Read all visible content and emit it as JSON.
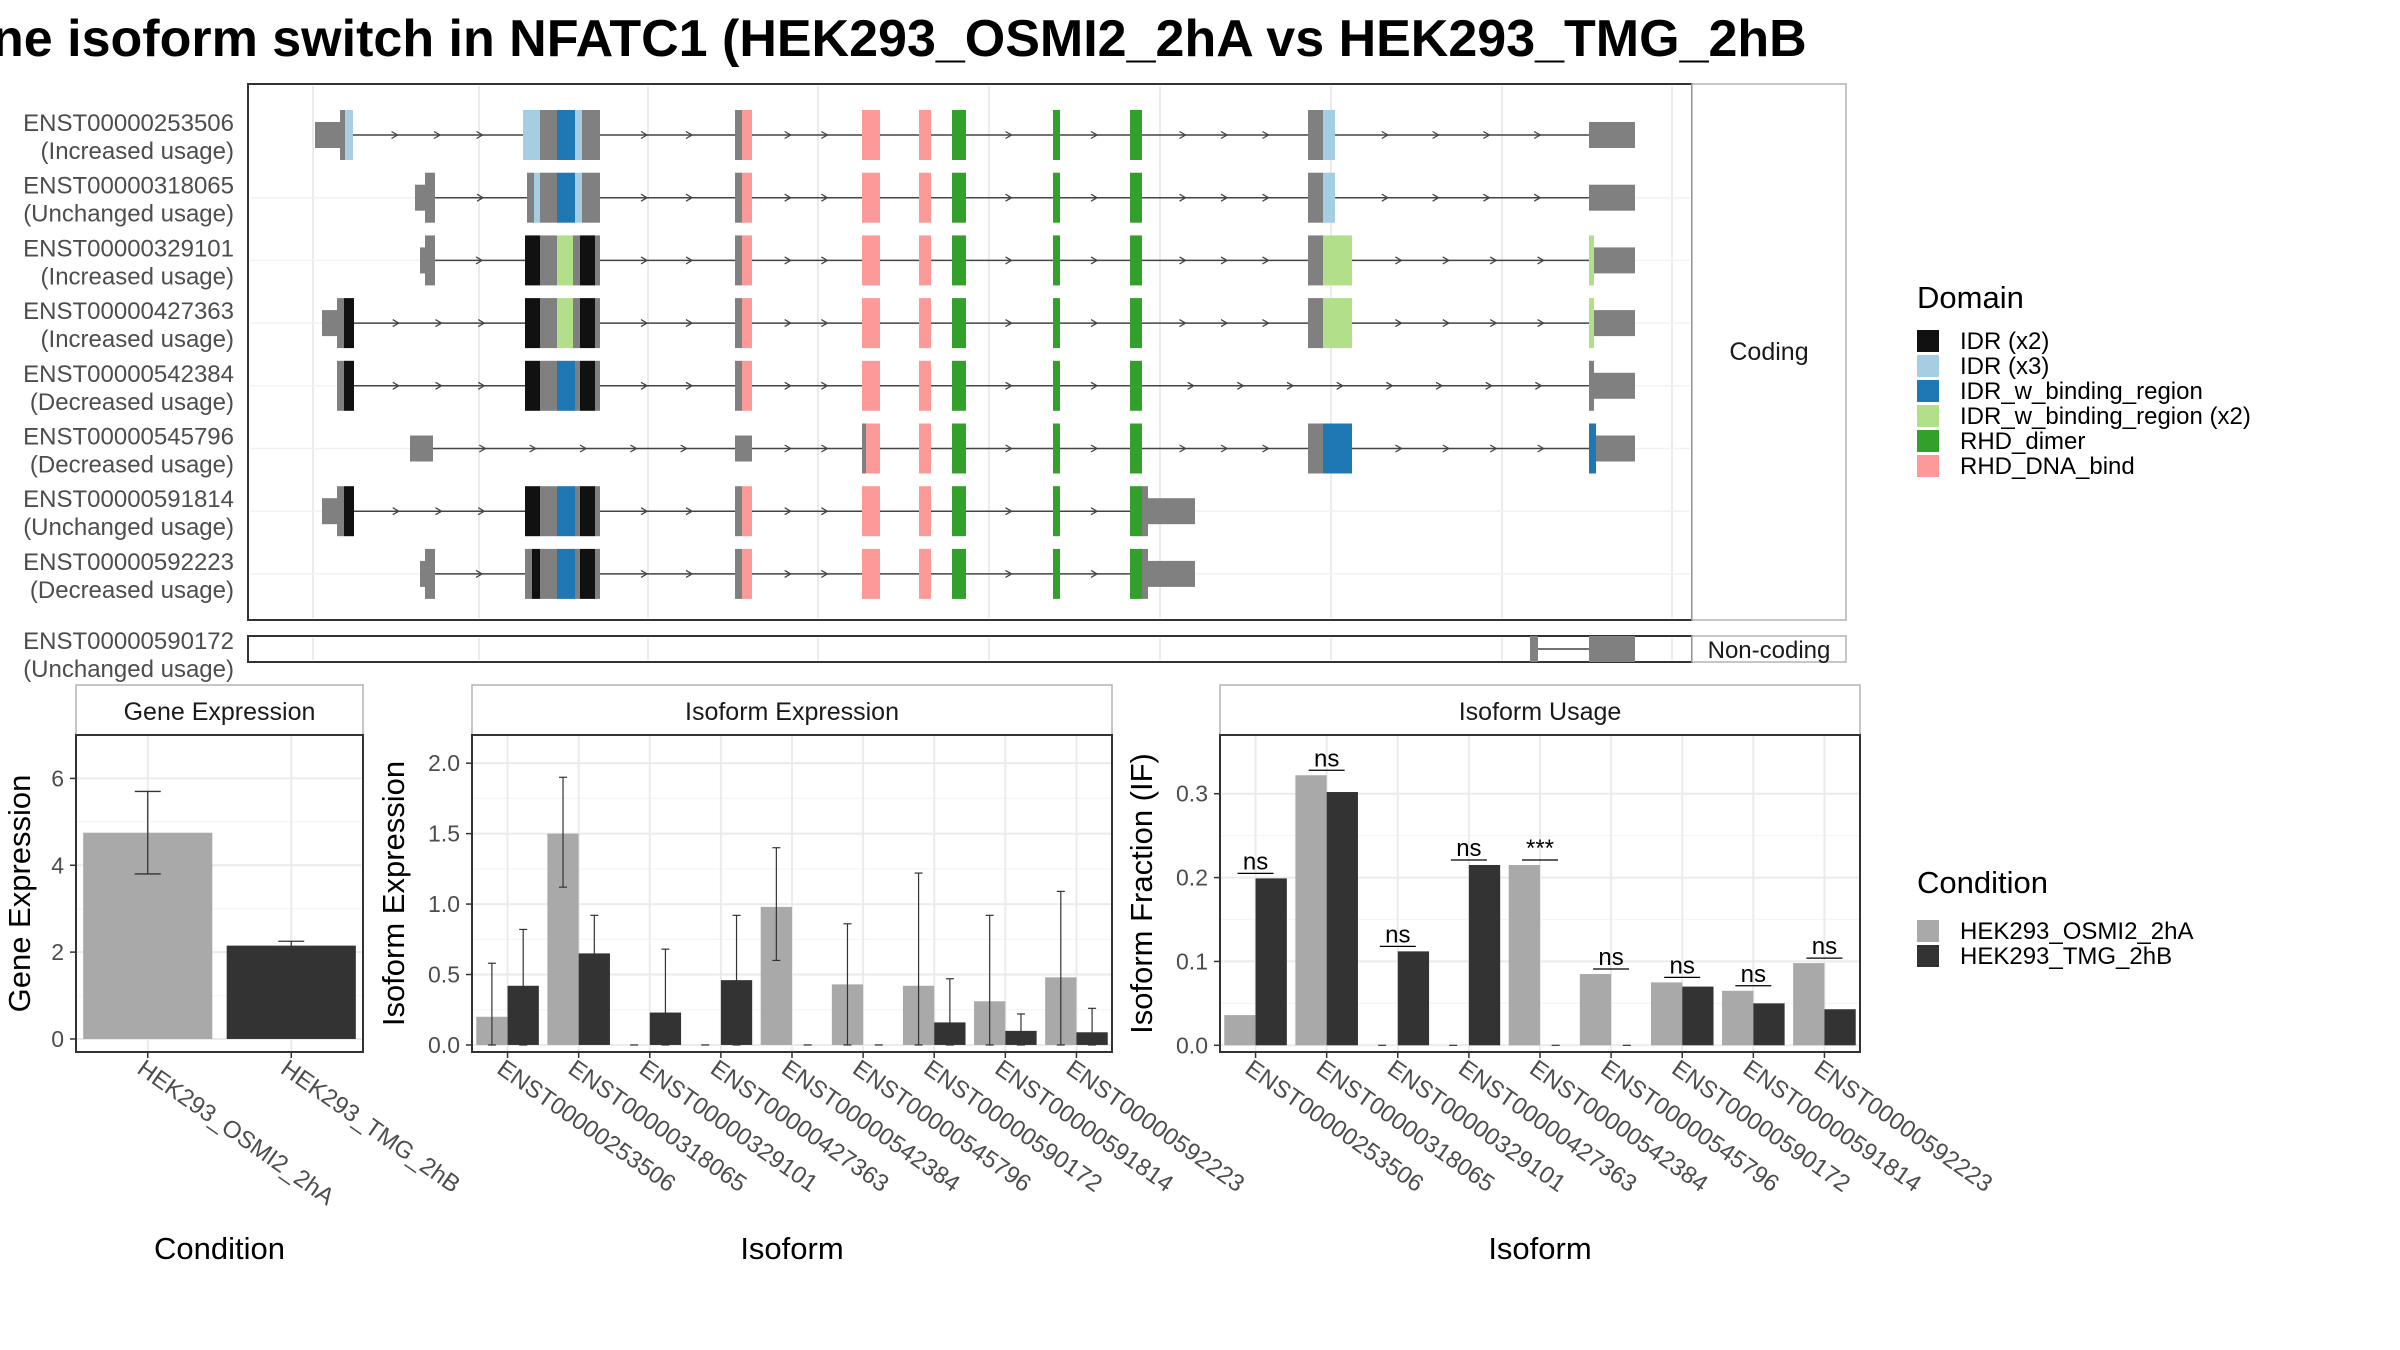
{
  "title": "ne isoform switch in NFATC1 (HEK293_OSMI2_2hA vs HEK293_TMG_2hB",
  "structure_panel": {
    "coding_label": "Coding",
    "noncoding_label": "Non-coding",
    "transcripts": [
      {
        "id": "ENST00000253506",
        "usage": "(Increased usage)",
        "group": "coding"
      },
      {
        "id": "ENST00000318065",
        "usage": "(Unchanged usage)",
        "group": "coding"
      },
      {
        "id": "ENST00000329101",
        "usage": "(Increased usage)",
        "group": "coding"
      },
      {
        "id": "ENST00000427363",
        "usage": "(Increased usage)",
        "group": "coding"
      },
      {
        "id": "ENST00000542384",
        "usage": "(Decreased usage)",
        "group": "coding"
      },
      {
        "id": "ENST00000545796",
        "usage": "(Decreased usage)",
        "group": "coding"
      },
      {
        "id": "ENST00000591814",
        "usage": "(Unchanged usage)",
        "group": "coding"
      },
      {
        "id": "ENST00000592223",
        "usage": "(Decreased usage)",
        "group": "coding"
      },
      {
        "id": "ENST00000590172",
        "usage": "(Unchanged usage)",
        "group": "noncoding"
      }
    ]
  },
  "domain_legend": {
    "title": "Domain",
    "items": [
      {
        "label": "IDR (x2)",
        "color": "#111111"
      },
      {
        "label": "IDR (x3)",
        "color": "#a6cee3"
      },
      {
        "label": "IDR_w_binding_region",
        "color": "#1f78b4"
      },
      {
        "label": "IDR_w_binding_region (x2)",
        "color": "#b2df8a"
      },
      {
        "label": "RHD_dimer",
        "color": "#33a02c"
      },
      {
        "label": "RHD_DNA_bind",
        "color": "#fb9a99"
      }
    ]
  },
  "condition_legend": {
    "title": "Condition",
    "items": [
      {
        "label": "HEK293_OSMI2_2hA",
        "color": "#a9a9a9"
      },
      {
        "label": "HEK293_TMG_2hB",
        "color": "#333333"
      }
    ]
  },
  "chart_data": [
    {
      "type": "bar",
      "title": "Gene Expression",
      "xlabel": "Condition",
      "ylabel": "Gene Expression",
      "categories": [
        "HEK293_OSMI2_2hA",
        "HEK293_TMG_2hB"
      ],
      "values": [
        4.75,
        2.15
      ],
      "error_low": [
        3.8,
        2.05
      ],
      "error_high": [
        5.7,
        2.25
      ],
      "ylim": [
        -0.3,
        7.0
      ],
      "yticks": [
        0,
        2,
        4,
        6
      ]
    },
    {
      "type": "bar",
      "title": "Isoform Expression",
      "xlabel": "Isoform",
      "ylabel": "Isoform Expression",
      "categories": [
        "ENST00000253506",
        "ENST00000318065",
        "ENST00000329101",
        "ENST00000427363",
        "ENST00000542384",
        "ENST00000545796",
        "ENST00000590172",
        "ENST00000591814",
        "ENST00000592223"
      ],
      "series": [
        {
          "name": "HEK293_OSMI2_2hA",
          "values": [
            0.2,
            1.5,
            0.0,
            0.0,
            0.98,
            0.43,
            0.42,
            0.31,
            0.48
          ],
          "error_low": [
            0.0,
            1.12,
            0.0,
            0.0,
            0.6,
            0.0,
            0.0,
            0.0,
            0.0
          ],
          "error_high": [
            0.58,
            1.9,
            0.0,
            0.0,
            1.4,
            0.86,
            1.22,
            0.92,
            1.09
          ]
        },
        {
          "name": "HEK293_TMG_2hB",
          "values": [
            0.42,
            0.65,
            0.23,
            0.46,
            0.0,
            0.0,
            0.16,
            0.1,
            0.09
          ],
          "error_low": [
            0.0,
            0.38,
            0.0,
            0.0,
            0.0,
            0.0,
            0.0,
            0.0,
            0.0
          ],
          "error_high": [
            0.82,
            0.92,
            0.68,
            0.92,
            0.0,
            0.0,
            0.47,
            0.22,
            0.26
          ]
        }
      ],
      "ylim": [
        -0.05,
        2.2
      ],
      "yticks": [
        0.0,
        0.5,
        1.0,
        1.5,
        2.0
      ]
    },
    {
      "type": "bar",
      "title": "Isoform Usage",
      "xlabel": "Isoform",
      "ylabel": "Isoform Fraction (IF)",
      "categories": [
        "ENST00000253506",
        "ENST00000318065",
        "ENST00000329101",
        "ENST00000427363",
        "ENST00000542384",
        "ENST00000545796",
        "ENST00000590172",
        "ENST00000591814",
        "ENST00000592223"
      ],
      "series": [
        {
          "name": "HEK293_OSMI2_2hA",
          "values": [
            0.036,
            0.322,
            0.0,
            0.0,
            0.215,
            0.085,
            0.075,
            0.065,
            0.098
          ]
        },
        {
          "name": "HEK293_TMG_2hB",
          "values": [
            0.199,
            0.302,
            0.112,
            0.215,
            0.0,
            0.0,
            0.07,
            0.05,
            0.043
          ]
        }
      ],
      "significance": [
        "ns",
        "ns",
        "ns",
        "ns",
        "***",
        "ns",
        "ns",
        "ns",
        "ns"
      ],
      "ylim": [
        -0.008,
        0.37
      ],
      "yticks": [
        0.0,
        0.1,
        0.2,
        0.3
      ]
    }
  ]
}
